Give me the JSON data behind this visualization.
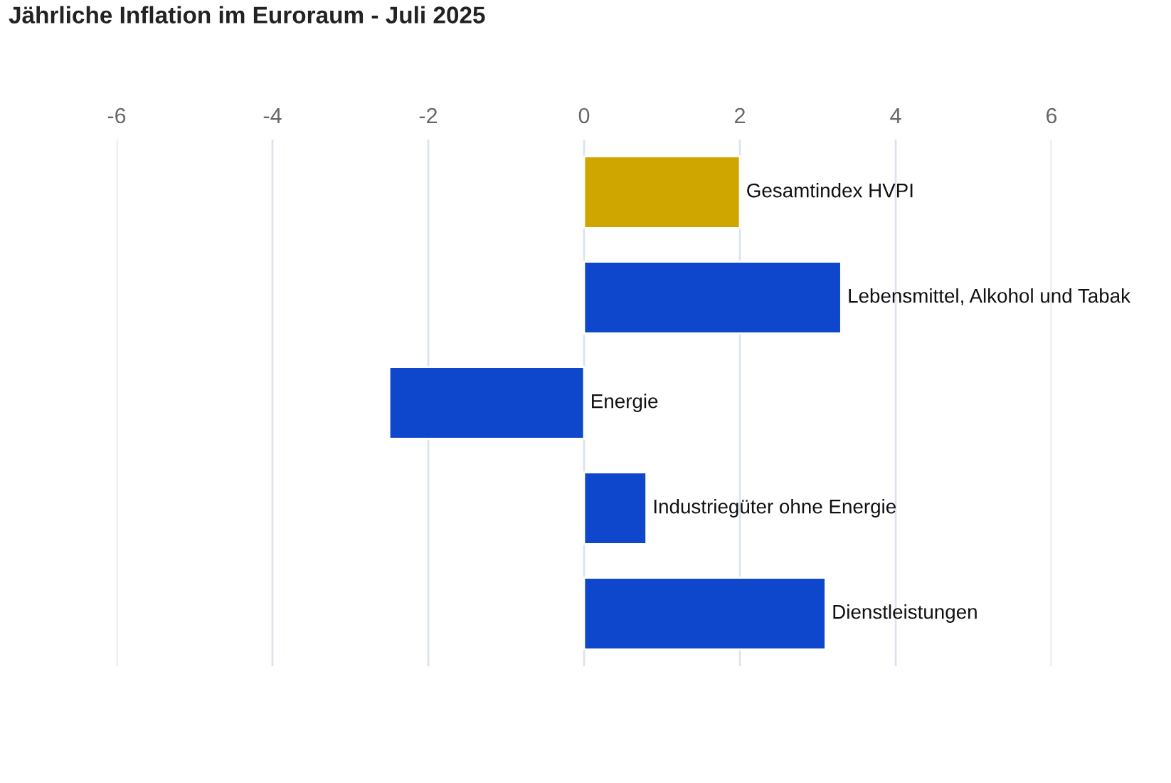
{
  "chart_data": {
    "type": "bar",
    "orientation": "horizontal",
    "title": "Jährliche Inflation im Euroraum - Juli 2025",
    "categories": [
      "Gesamtindex HVPI",
      "Lebensmittel, Alkohol und Tabak",
      "Energie",
      "Industriegüter ohne Energie",
      "Dienstleistungen"
    ],
    "values": [
      2.0,
      3.3,
      -2.5,
      0.8,
      3.1
    ],
    "colors": [
      "#cfa500",
      "#0e47cb",
      "#0e47cb",
      "#0e47cb",
      "#0e47cb"
    ],
    "xlim": [
      -6,
      6
    ],
    "xticks": [
      -6,
      -4,
      -2,
      0,
      2,
      4,
      6
    ],
    "grid": "x",
    "legend": false,
    "tick_labels": "x"
  }
}
